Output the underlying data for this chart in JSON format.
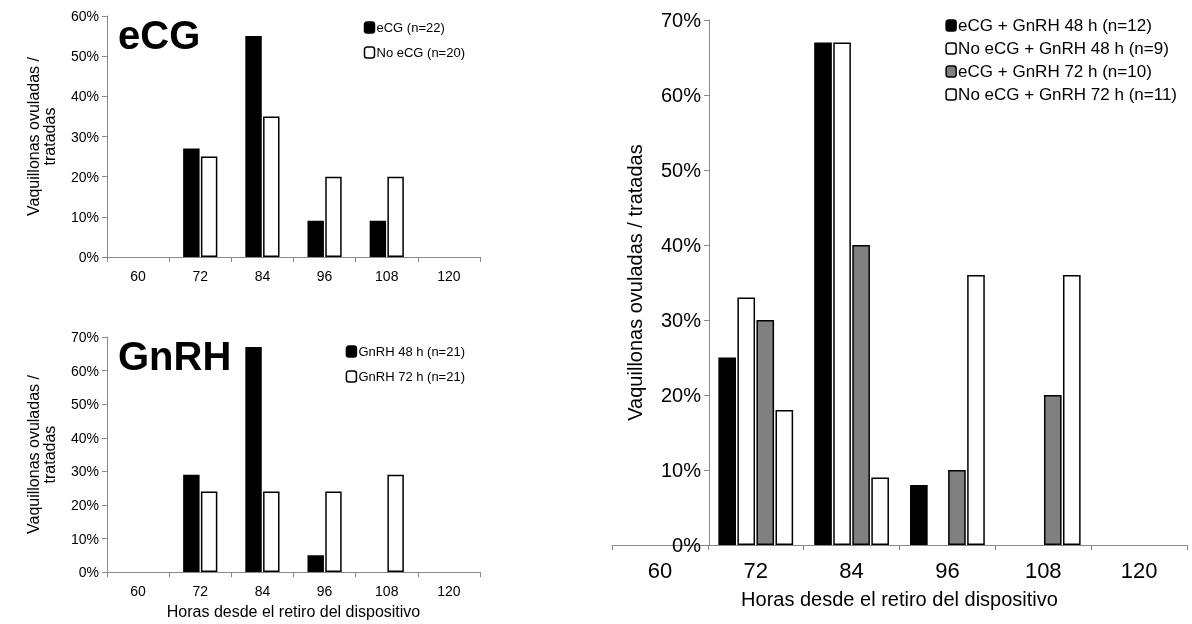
{
  "chart_data": [
    {
      "type": "bar",
      "title": "eCG",
      "ylabel": "Vaquillonas ovuladas / tratadas",
      "categories": [
        "60",
        "72",
        "84",
        "96",
        "108",
        "120"
      ],
      "ylim": [
        0,
        60
      ],
      "yticks": [
        {
          "value": 0,
          "label": "0%"
        },
        {
          "value": 10,
          "label": "10%"
        },
        {
          "value": 20,
          "label": "20%"
        },
        {
          "value": 30,
          "label": "30%"
        },
        {
          "value": 40,
          "label": "40%"
        },
        {
          "value": 50,
          "label": "50%"
        },
        {
          "value": 60,
          "label": "60%"
        }
      ],
      "legend": "top right",
      "series": [
        {
          "name": "eCG (n=22)",
          "color": "#000000",
          "values": [
            0,
            27,
            55,
            9,
            9,
            0
          ]
        },
        {
          "name": "No eCG (n=20)",
          "color": "#ffffff",
          "values": [
            0,
            25,
            35,
            20,
            20,
            0
          ]
        }
      ]
    },
    {
      "type": "bar",
      "title": "GnRH",
      "ylabel": "Vaquillonas ovuladas / tratadas",
      "xlabel": "Horas desde el retiro del dispositivo",
      "categories": [
        "60",
        "72",
        "84",
        "96",
        "108",
        "120"
      ],
      "ylim": [
        0,
        70
      ],
      "yticks": [
        {
          "value": 0,
          "label": "0%"
        },
        {
          "value": 10,
          "label": "10%"
        },
        {
          "value": 20,
          "label": "20%"
        },
        {
          "value": 30,
          "label": "30%"
        },
        {
          "value": 40,
          "label": "40%"
        },
        {
          "value": 50,
          "label": "50%"
        },
        {
          "value": 60,
          "label": "60%"
        },
        {
          "value": 70,
          "label": "70%"
        }
      ],
      "legend": "top right",
      "series": [
        {
          "name": "GnRH 48 h (n=21)",
          "color": "#000000",
          "values": [
            0,
            29,
            67,
            5,
            0,
            0
          ]
        },
        {
          "name": "GnRH 72 h (n=21)",
          "color": "#ffffff",
          "values": [
            0,
            24,
            24,
            24,
            29,
            0
          ]
        }
      ]
    },
    {
      "type": "bar",
      "ylabel": "Vaquillonas ovuladas / tratadas",
      "xlabel": "Horas desde el retiro del dispositivo",
      "categories": [
        "60",
        "72",
        "84",
        "96",
        "108",
        "120"
      ],
      "ylim": [
        0,
        70
      ],
      "yticks": [
        {
          "value": 0,
          "label": "0%"
        },
        {
          "value": 10,
          "label": "10%"
        },
        {
          "value": 20,
          "label": "20%"
        },
        {
          "value": 30,
          "label": "30%"
        },
        {
          "value": 40,
          "label": "40%"
        },
        {
          "value": 50,
          "label": "50%"
        },
        {
          "value": 60,
          "label": "60%"
        },
        {
          "value": 70,
          "label": "70%"
        }
      ],
      "legend": "top right",
      "series": [
        {
          "name": "eCG + GnRH 48 h (n=12)",
          "color": "#000000",
          "values": [
            0,
            25,
            67,
            8,
            0,
            0
          ]
        },
        {
          "name": "No eCG + GnRH 48 h (n=9)",
          "color": "#ffffff",
          "values": [
            0,
            33,
            67,
            0,
            0,
            0
          ]
        },
        {
          "name": "eCG + GnRH 72 h (n=10)",
          "color": "#808080",
          "values": [
            0,
            30,
            40,
            10,
            20,
            0
          ]
        },
        {
          "name": "No eCG + GnRH 72 h (n=11)",
          "color": "#ffffff",
          "values": [
            0,
            18,
            9,
            36,
            36,
            0
          ]
        }
      ]
    }
  ]
}
